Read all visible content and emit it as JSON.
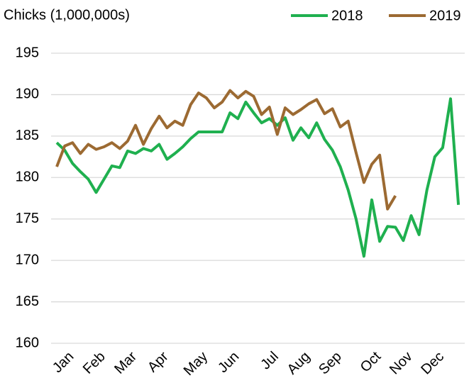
{
  "chart_data": {
    "type": "line",
    "title": "Chicks (1,000,000s)",
    "categories": [
      null,
      "Jan",
      null,
      null,
      null,
      "Feb",
      null,
      null,
      null,
      "Mar",
      null,
      null,
      null,
      "Apr",
      null,
      null,
      null,
      null,
      "May",
      null,
      null,
      null,
      "Jun",
      null,
      null,
      null,
      null,
      "Jul",
      null,
      null,
      null,
      "Aug",
      null,
      null,
      null,
      "Sep",
      null,
      null,
      null,
      null,
      "Oct",
      null,
      null,
      null,
      "Nov",
      null,
      null,
      null,
      "Dec",
      null,
      null,
      null
    ],
    "series": [
      {
        "name": "2018",
        "color": "#1fb04f",
        "values": [
          184.2,
          183.3,
          181.7,
          180.7,
          179.8,
          178.2,
          179.8,
          181.4,
          181.2,
          183.2,
          182.9,
          183.5,
          183.2,
          184.0,
          182.2,
          182.9,
          183.7,
          184.7,
          185.5,
          185.5,
          185.5,
          185.5,
          187.8,
          187.1,
          189.1,
          187.8,
          186.6,
          187.1,
          186.3,
          187.2,
          184.5,
          186.0,
          184.8,
          186.6,
          184.6,
          183.3,
          181.3,
          178.5,
          175.0,
          170.5,
          177.3,
          172.3,
          174.1,
          174.0,
          172.4,
          175.4,
          173.1,
          178.5,
          182.5,
          183.6,
          189.5,
          176.7
        ]
      },
      {
        "name": "2019",
        "color": "#9c6a32",
        "values": [
          181.3,
          183.8,
          184.2,
          182.9,
          184.0,
          183.4,
          183.7,
          184.2,
          183.5,
          184.4,
          186.3,
          184.0,
          185.9,
          187.4,
          186.0,
          186.8,
          186.3,
          188.8,
          190.2,
          189.6,
          188.4,
          189.1,
          190.5,
          189.6,
          190.4,
          189.8,
          187.6,
          188.5,
          185.2,
          188.4,
          187.6,
          188.2,
          188.9,
          189.4,
          187.7,
          188.3,
          186.1,
          186.8,
          183.0,
          179.4,
          181.6,
          182.7,
          176.2,
          177.8,
          null,
          null,
          null,
          null,
          null,
          null,
          null,
          null
        ]
      }
    ],
    "ylim": [
      160,
      195
    ],
    "yticks": [
      160,
      165,
      170,
      175,
      180,
      185,
      190,
      195
    ],
    "grid": true,
    "legend": "top-right"
  }
}
